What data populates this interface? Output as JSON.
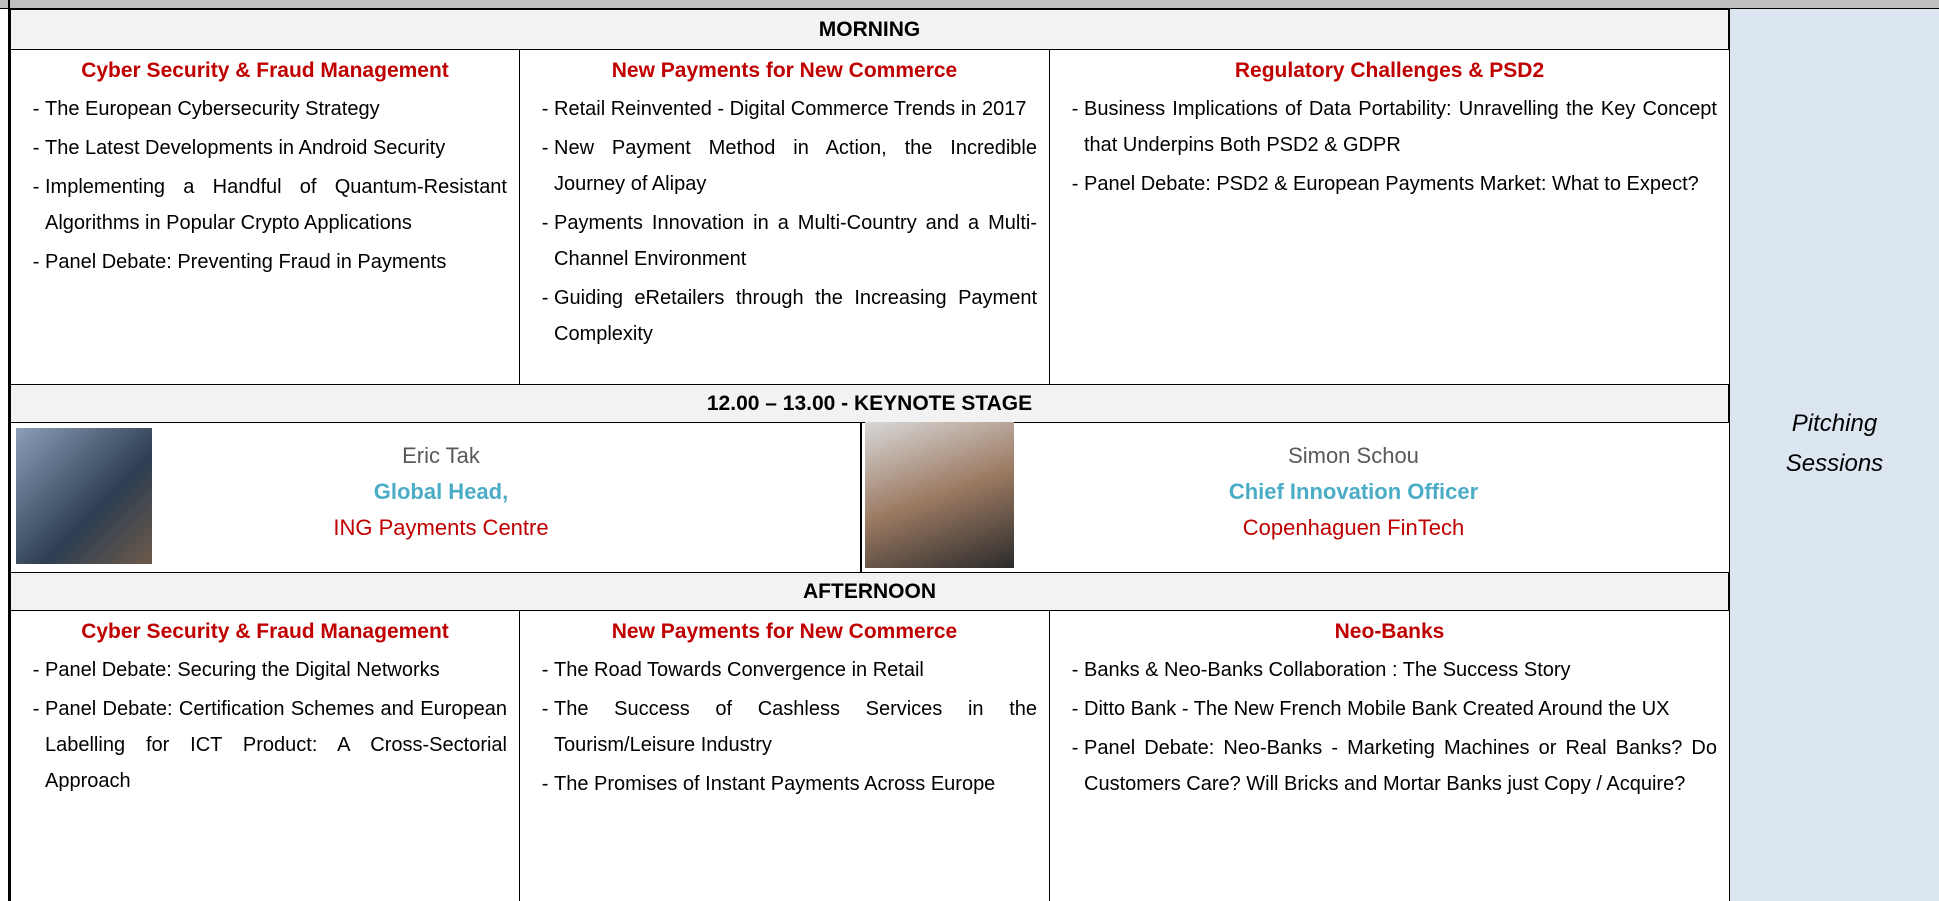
{
  "morning": {
    "title": "MORNING",
    "tracks": [
      {
        "title": "Cyber Security & Fraud Management",
        "items": [
          "The European Cybersecurity Strategy",
          "The Latest Developments in Android Security",
          "Implementing a Handful of Quantum-Resistant Algorithms in Popular Crypto Applications",
          "Panel Debate: Preventing Fraud in Payments"
        ]
      },
      {
        "title": "New Payments for New Commerce",
        "items": [
          "Retail Reinvented - Digital Commerce Trends in 2017",
          "New Payment Method in Action, the Incredible Journey of Alipay",
          "Payments Innovation in a Multi-Country and a Multi-Channel Environment",
          "Guiding eRetailers through the Increasing Payment Complexity"
        ]
      },
      {
        "title": "Regulatory Challenges & PSD2",
        "items": [
          "Business Implications of Data Portability: Unravelling the Key Concept that Underpins Both PSD2 & GDPR",
          "Panel Debate: PSD2 & European Payments Market: What to Expect?"
        ]
      }
    ]
  },
  "keynote": {
    "title": "12.00 – 13.00 - KEYNOTE STAGE",
    "speakers": [
      {
        "name": "Eric Tak",
        "role": "Global Head,",
        "org": "ING Payments Centre"
      },
      {
        "name": "Simon Schou",
        "role": "Chief Innovation Officer",
        "org": "Copenhaguen FinTech"
      }
    ]
  },
  "afternoon": {
    "title": "AFTERNOON",
    "tracks": [
      {
        "title": "Cyber Security & Fraud Management",
        "items": [
          "Panel Debate: Securing the Digital Networks",
          "Panel Debate: Certification Schemes and European Labelling for ICT Product: A Cross-Sectorial Approach"
        ]
      },
      {
        "title": "New Payments for New Commerce",
        "items": [
          "The Road Towards Convergence in Retail",
          "The Success of Cashless Services in the Tourism/Leisure Industry",
          "The Promises of Instant Payments Across Europe"
        ]
      },
      {
        "title": "Neo-Banks",
        "items": [
          "Banks & Neo-Banks Collaboration : The Success Story",
          "Ditto Bank - The New French Mobile Bank Created Around the UX",
          "Panel Debate: Neo-Banks - Marketing Machines or Real Banks? Do Customers Care? Will Bricks and Mortar Banks just Copy / Acquire?"
        ]
      }
    ]
  },
  "side": {
    "text": "Pitching Sessions"
  }
}
